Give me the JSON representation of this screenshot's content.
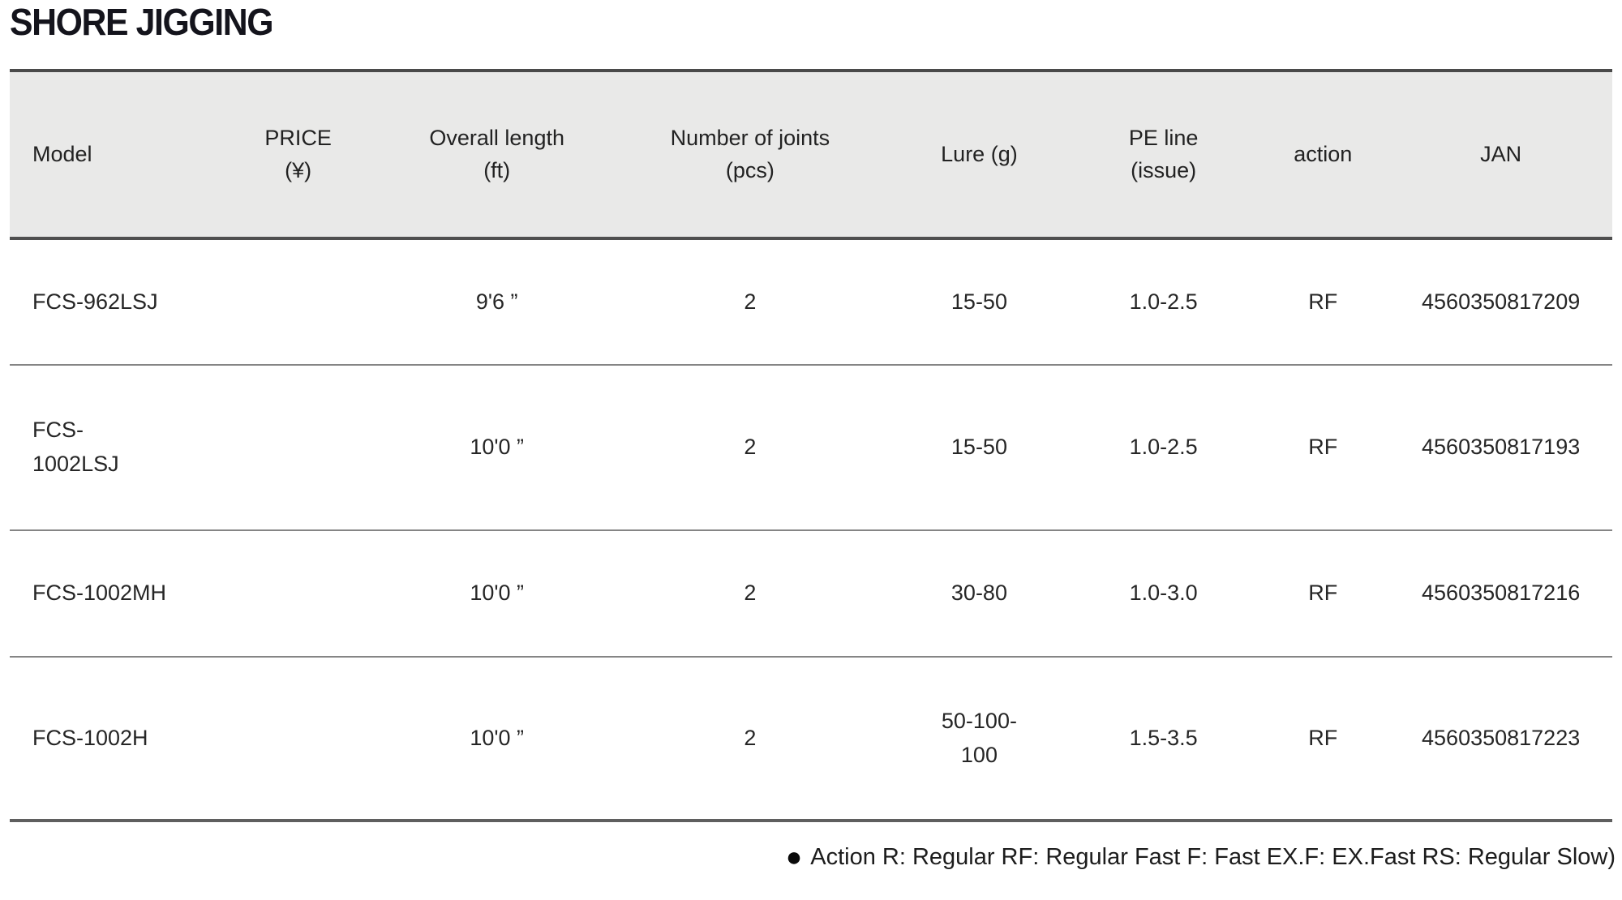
{
  "page": {
    "title": "SHORE JIGGING"
  },
  "table": {
    "headers": {
      "model": "Model",
      "price": "PRICE\n(¥)",
      "length": "Overall length\n(ft)",
      "joints": "Number of joints\n(pcs)",
      "lure": "Lure (g)",
      "pe_line": "PE line\n(issue)",
      "action": "action",
      "jan": "JAN"
    },
    "rows": [
      {
        "model": "FCS-962LSJ",
        "price": "",
        "length": "9'6 ”",
        "joints": "2",
        "lure": "15-50",
        "pe_line": "1.0-2.5",
        "action": "RF",
        "jan": "4560350817209"
      },
      {
        "model": "FCS-\n1002LSJ",
        "price": "",
        "length": "10'0 ”",
        "joints": "2",
        "lure": "15-50",
        "pe_line": "1.0-2.5",
        "action": "RF",
        "jan": "4560350817193"
      },
      {
        "model": "FCS-1002MH",
        "price": "",
        "length": "10'0 ”",
        "joints": "2",
        "lure": "30-80",
        "pe_line": "1.0-3.0",
        "action": "RF",
        "jan": "4560350817216"
      },
      {
        "model": "FCS-1002H",
        "price": "",
        "length": "10'0 ”",
        "joints": "2",
        "lure": "50-100-\n100",
        "pe_line": "1.5-3.5",
        "action": "RF",
        "jan": "4560350817223"
      }
    ]
  },
  "footer": {
    "bullet": "●",
    "note": "Action R: Regular RF: Regular Fast F: Fast EX.F: EX.Fast RS: Regular Slow)"
  }
}
